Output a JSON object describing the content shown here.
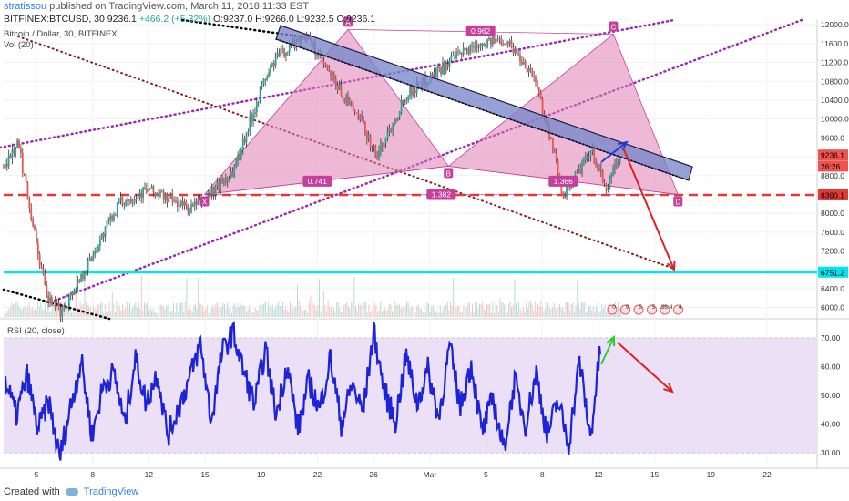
{
  "header": {
    "user": "stratissou",
    "published_text": "published on TradingView.com, March 11, 2018 11:33 EST",
    "symbol": "BITFINEX:BTCUSD, 30",
    "last": "9236.1",
    "change": "+466.2 (+5.32%)",
    "ohlc": {
      "o": "O:9237.0",
      "h": "H:9266.0",
      "l": "L:9232.5",
      "c": "C:9236.1"
    },
    "instrument": "Bitcoin / Dollar, 30, BITFINEX",
    "volume_label": "Vol (20)"
  },
  "rsi_label": "RSI (20, close)",
  "footer": {
    "created": "Created with",
    "brand": "TradingView"
  },
  "colors": {
    "candle_up": "#26a69a",
    "candle_down": "#ef5350",
    "pattern_fill": "#e07fb4",
    "pattern_stroke": "#c63f9c",
    "channel_fill": "#7986cb",
    "support_red": "#e53935",
    "support_cyan": "#00e5ee",
    "purple_dotted": "#9c27b0",
    "brown_dotted": "#8b1a1a",
    "rsi_line": "#1c23d8",
    "rsi_band": "#ece0f7",
    "arrow_blue": "#1e3ad6",
    "arrow_red": "#e02020",
    "arrow_green": "#2ecc2e"
  },
  "chart_data": [
    {
      "type": "candlestick",
      "title": "Bitcoin / Dollar, 30, BITFINEX",
      "y_ticks": [
        6000,
        6400,
        6800,
        7200,
        7600,
        8000,
        8400,
        8800,
        9200,
        9600,
        10000,
        10400,
        10800,
        11200,
        11600,
        12000
      ],
      "ylim": [
        5800,
        12100
      ],
      "x_tick_labels": [
        "5",
        "8",
        "12",
        "15",
        "19",
        "22",
        "26",
        "Mar",
        "5",
        "8",
        "12",
        "15",
        "19",
        "22"
      ],
      "price_path": [
        [
          0,
          9000
        ],
        [
          1,
          9500
        ],
        [
          3,
          6200
        ],
        [
          4,
          5900
        ],
        [
          6,
          7000
        ],
        [
          8,
          8200
        ],
        [
          10,
          8500
        ],
        [
          13,
          8100
        ],
        [
          14,
          8300
        ],
        [
          16,
          8900
        ],
        [
          18,
          10700
        ],
        [
          19,
          11300
        ],
        [
          21,
          11800
        ],
        [
          23,
          10800
        ],
        [
          25,
          9900
        ],
        [
          26,
          9200
        ],
        [
          28,
          10500
        ],
        [
          31,
          11200
        ],
        [
          33,
          11600
        ],
        [
          35,
          11700
        ],
        [
          37,
          10900
        ],
        [
          38,
          9700
        ],
        [
          39,
          8400
        ],
        [
          41,
          9300
        ],
        [
          42,
          8500
        ],
        [
          43,
          9236.1
        ]
      ],
      "x_range": [
        0,
        48
      ],
      "price_labels": [
        {
          "value": 9236.1,
          "text": "9236.1",
          "color": "#ef5350"
        },
        {
          "value": 9000,
          "text": "26:26",
          "color": "#ef5350"
        },
        {
          "value": 8390.1,
          "text": "8390.1",
          "color": "#e53935"
        },
        {
          "value": 6751.2,
          "text": "6751.2",
          "color": "#00e5ee"
        }
      ],
      "horizontal_levels": [
        {
          "value": 8390.1,
          "style": "dashed",
          "color": "#e53935"
        },
        {
          "value": 6751.2,
          "style": "solid",
          "color": "#00e5ee"
        }
      ],
      "harmonic_pattern": {
        "points": [
          {
            "label": "X",
            "x": 14,
            "y": 8400
          },
          {
            "label": "A",
            "x": 24,
            "y": 11900
          },
          {
            "label": "B",
            "x": 31,
            "y": 9000
          },
          {
            "label": "C",
            "x": 42.5,
            "y": 11800
          },
          {
            "label": "D",
            "x": 47,
            "y": 8400
          }
        ],
        "ratios": [
          {
            "text": "0.962",
            "between": "A-C"
          },
          {
            "text": "0.741",
            "between": "X-B"
          },
          {
            "text": "1.366",
            "between": "B-D"
          },
          {
            "text": "1.382",
            "between": "X-D"
          }
        ]
      },
      "event_labels": [
        "0",
        "9",
        "5",
        "5",
        "36.4",
        "4"
      ]
    },
    {
      "type": "line",
      "title": "RSI (20, close)",
      "y_ticks": [
        30,
        40,
        50,
        60,
        70
      ],
      "ylim": [
        25,
        76
      ],
      "band": [
        30,
        70
      ],
      "series": [
        {
          "values": [
            55,
            43,
            57,
            38,
            48,
            28,
            46,
            62,
            36,
            53,
            58,
            40,
            63,
            47,
            58,
            36,
            46,
            56,
            68,
            41,
            65,
            72,
            58,
            47,
            66,
            43,
            61,
            38,
            55,
            45,
            63,
            40,
            54,
            44,
            72,
            51,
            41,
            64,
            47,
            59,
            42,
            67,
            46,
            61,
            37,
            49,
            31,
            55,
            40,
            58,
            36,
            48,
            33,
            62,
            35,
            69
          ]
        }
      ]
    }
  ]
}
